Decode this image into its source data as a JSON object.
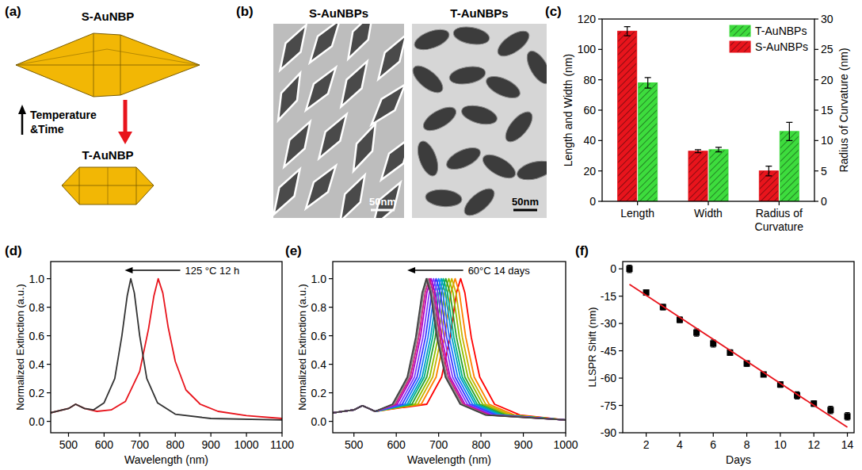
{
  "diagram": {
    "panel_label": "(a)",
    "top_label": "S-AuNBP",
    "bottom_label": "T-AuNBP",
    "arrow_label": [
      "Temperature",
      "&Time"
    ]
  },
  "images": {
    "panel_label": "(b)",
    "items": [
      {
        "title": "S-AuNBPs",
        "scale_bar": "50nm"
      },
      {
        "title": "T-AuNBPs",
        "scale_bar": "50nm"
      }
    ]
  },
  "chart_data": [
    {
      "type": "bar",
      "panel_label": "(c)",
      "ylabel": "Length and Width (nm)",
      "y2label": "Radius of Curvature (nm)",
      "categories": [
        "Length",
        "Width",
        "Radius of Curvature"
      ],
      "ylim": [
        0,
        120
      ],
      "yticks": [
        0,
        20,
        40,
        60,
        80,
        100,
        120
      ],
      "y2lim": [
        0,
        30
      ],
      "y2ticks": [
        0,
        5,
        10,
        15,
        20,
        25,
        30
      ],
      "legend": "upper right",
      "series": [
        {
          "name": "S-AuNBPs",
          "color": "#e8141c",
          "values": [
            112,
            33,
            null
          ],
          "error": [
            3,
            1,
            null
          ]
        },
        {
          "name": "T-AuNBPs",
          "color": "#3ddc3d",
          "values": [
            78,
            34,
            null
          ],
          "error": [
            3.5,
            1.5,
            null
          ]
        },
        {
          "name": "S-AuNBPs",
          "color": "#e8141c",
          "axis": "y2",
          "values": [
            null,
            null,
            5
          ],
          "error": [
            null,
            null,
            0.8
          ]
        },
        {
          "name": "T-AuNBPs",
          "color": "#3ddc3d",
          "axis": "y2",
          "values": [
            null,
            null,
            11.5
          ],
          "error": [
            null,
            null,
            1.5
          ]
        }
      ]
    },
    {
      "type": "line",
      "panel_label": "(d)",
      "xlabel": "Wavelength (nm)",
      "ylabel": "Normalized Extinction (a.u.)",
      "annotation": "125 °C 12 h",
      "xlim": [
        450,
        1100
      ],
      "xticks": [
        500,
        600,
        700,
        800,
        900,
        1000,
        1100
      ],
      "ylim": [
        -0.08,
        1.12
      ],
      "yticks": [
        {
          "value": 0,
          "label": "0.0"
        },
        0.2,
        0.4,
        0.6,
        0.8,
        {
          "value": 1,
          "label": "1.0"
        }
      ],
      "series": [
        {
          "color": "#e8141c",
          "x": [
            450,
            500,
            520,
            545,
            580,
            620,
            660,
            700,
            725,
            740,
            752,
            765,
            780,
            800,
            830,
            870,
            920,
            1000,
            1100
          ],
          "values": [
            0.06,
            0.09,
            0.12,
            0.09,
            0.07,
            0.08,
            0.14,
            0.35,
            0.65,
            0.88,
            1,
            0.9,
            0.66,
            0.42,
            0.22,
            0.12,
            0.07,
            0.04,
            0.02
          ]
        },
        {
          "color": "#333333",
          "x": [
            450,
            500,
            520,
            545,
            570,
            600,
            630,
            650,
            665,
            675,
            685,
            700,
            720,
            750,
            800,
            900,
            1100
          ],
          "values": [
            0.06,
            0.09,
            0.12,
            0.09,
            0.08,
            0.13,
            0.3,
            0.6,
            0.88,
            1,
            0.9,
            0.6,
            0.3,
            0.13,
            0.05,
            0.02,
            0.01
          ]
        }
      ]
    },
    {
      "type": "line",
      "panel_label": "(e)",
      "xlabel": "Wavelength (nm)",
      "ylabel": "Normalized Extinction (a.u.)",
      "annotation": "60°C 14 days",
      "xlim": [
        450,
        1000
      ],
      "xticks": [
        500,
        600,
        700,
        800,
        900,
        1000
      ],
      "ylim": [
        -0.08,
        1.12
      ],
      "yticks": [
        {
          "value": 0,
          "label": "0.0"
        },
        0.2,
        0.4,
        0.6,
        0.8,
        {
          "value": 1,
          "label": "1.0"
        }
      ],
      "series": [
        {
          "color": "#ff0000",
          "x": [
            450,
            500,
            520,
            550,
            672,
            707,
            727,
            742,
            752,
            762,
            777,
            797,
            832,
            892,
            1000
          ],
          "values": [
            0.06,
            0.08,
            0.11,
            0.07,
            0.12,
            0.31,
            0.59,
            0.9,
            1,
            0.9,
            0.59,
            0.31,
            0.12,
            0.044,
            0.01
          ]
        },
        {
          "color": "#ff8000",
          "x": [
            450,
            500,
            520,
            550,
            659,
            694,
            714,
            729,
            739,
            749,
            764,
            784,
            819,
            879,
            1000
          ],
          "values": [
            0.06,
            0.08,
            0.11,
            0.07,
            0.12,
            0.31,
            0.59,
            0.9,
            1,
            0.9,
            0.59,
            0.31,
            0.12,
            0.044,
            0.01
          ]
        },
        {
          "color": "#c8b400",
          "x": [
            450,
            500,
            520,
            550,
            651,
            686,
            706,
            721,
            731,
            741,
            756,
            776,
            811,
            871,
            1000
          ],
          "values": [
            0.06,
            0.08,
            0.11,
            0.07,
            0.12,
            0.31,
            0.59,
            0.9,
            1,
            0.9,
            0.59,
            0.31,
            0.12,
            0.044,
            0.01
          ]
        },
        {
          "color": "#8fbf00",
          "x": [
            450,
            500,
            520,
            550,
            644,
            679,
            699,
            714,
            724,
            734,
            749,
            769,
            804,
            864,
            1000
          ],
          "values": [
            0.06,
            0.08,
            0.11,
            0.07,
            0.12,
            0.31,
            0.59,
            0.9,
            1,
            0.9,
            0.59,
            0.31,
            0.12,
            0.044,
            0.01
          ]
        },
        {
          "color": "#2ca02c",
          "x": [
            450,
            500,
            520,
            550,
            637,
            672,
            692,
            707,
            717,
            727,
            742,
            762,
            797,
            857,
            1000
          ],
          "values": [
            0.06,
            0.08,
            0.11,
            0.07,
            0.12,
            0.31,
            0.59,
            0.9,
            1,
            0.9,
            0.59,
            0.31,
            0.12,
            0.044,
            0.01
          ]
        },
        {
          "color": "#00b386",
          "x": [
            450,
            500,
            520,
            550,
            631,
            666,
            686,
            701,
            711,
            721,
            736,
            756,
            791,
            851,
            1000
          ],
          "values": [
            0.06,
            0.08,
            0.11,
            0.07,
            0.12,
            0.31,
            0.59,
            0.9,
            1,
            0.9,
            0.59,
            0.31,
            0.12,
            0.044,
            0.01
          ]
        },
        {
          "color": "#00a0c8",
          "x": [
            450,
            500,
            520,
            550,
            626,
            661,
            681,
            696,
            706,
            716,
            731,
            751,
            786,
            846,
            1000
          ],
          "values": [
            0.06,
            0.08,
            0.11,
            0.07,
            0.12,
            0.31,
            0.59,
            0.9,
            1,
            0.9,
            0.59,
            0.31,
            0.12,
            0.044,
            0.01
          ]
        },
        {
          "color": "#1e78ff",
          "x": [
            450,
            500,
            520,
            550,
            620,
            655,
            675,
            690,
            700,
            710,
            725,
            745,
            780,
            840,
            1000
          ],
          "values": [
            0.06,
            0.08,
            0.11,
            0.07,
            0.12,
            0.31,
            0.59,
            0.9,
            1,
            0.9,
            0.59,
            0.31,
            0.12,
            0.044,
            0.01
          ]
        },
        {
          "color": "#3a3aff",
          "x": [
            450,
            500,
            520,
            550,
            614,
            649,
            669,
            684,
            694,
            704,
            719,
            739,
            774,
            834,
            1000
          ],
          "values": [
            0.06,
            0.08,
            0.11,
            0.07,
            0.12,
            0.31,
            0.59,
            0.9,
            1,
            0.9,
            0.59,
            0.31,
            0.12,
            0.044,
            0.01
          ]
        },
        {
          "color": "#8040ff",
          "x": [
            450,
            500,
            520,
            550,
            608,
            643,
            663,
            678,
            688,
            698,
            713,
            733,
            768,
            828,
            1000
          ],
          "values": [
            0.06,
            0.08,
            0.11,
            0.07,
            0.12,
            0.31,
            0.59,
            0.9,
            1,
            0.9,
            0.59,
            0.31,
            0.12,
            0.044,
            0.01
          ]
        },
        {
          "color": "#b000c0",
          "x": [
            450,
            500,
            520,
            550,
            602,
            637,
            657,
            672,
            682,
            692,
            707,
            727,
            762,
            822,
            1000
          ],
          "values": [
            0.06,
            0.08,
            0.11,
            0.07,
            0.12,
            0.31,
            0.59,
            0.9,
            1,
            0.9,
            0.59,
            0.31,
            0.12,
            0.044,
            0.01
          ]
        },
        {
          "color": "#d0207a",
          "x": [
            450,
            500,
            520,
            550,
            598,
            633,
            653,
            668,
            678,
            688,
            703,
            723,
            758,
            818,
            1000
          ],
          "values": [
            0.06,
            0.08,
            0.11,
            0.07,
            0.12,
            0.31,
            0.59,
            0.9,
            1,
            0.9,
            0.59,
            0.31,
            0.12,
            0.044,
            0.01
          ]
        },
        {
          "color": "#7f7f7f",
          "x": [
            450,
            500,
            520,
            550,
            594,
            629,
            649,
            664,
            674,
            684,
            699,
            719,
            754,
            814,
            1000
          ],
          "values": [
            0.06,
            0.08,
            0.11,
            0.07,
            0.12,
            0.31,
            0.59,
            0.9,
            1,
            0.9,
            0.59,
            0.31,
            0.12,
            0.044,
            0.01
          ]
        },
        {
          "color": "#404040",
          "x": [
            450,
            500,
            520,
            550,
            591,
            626,
            646,
            661,
            671,
            681,
            696,
            716,
            751,
            811,
            1000
          ],
          "values": [
            0.06,
            0.08,
            0.11,
            0.07,
            0.12,
            0.31,
            0.59,
            0.9,
            1,
            0.9,
            0.59,
            0.31,
            0.12,
            0.044,
            0.01
          ]
        }
      ]
    },
    {
      "type": "scatter",
      "panel_label": "(f)",
      "xlabel": "Days",
      "ylabel": "LLSPR Shift (nm)",
      "xlim": [
        0.6,
        14.4
      ],
      "xticks": [
        2,
        4,
        6,
        8,
        10,
        12,
        14
      ],
      "ylim": [
        -90,
        4
      ],
      "yticks": [
        0,
        -15,
        -30,
        -45,
        -60,
        -75,
        -90
      ],
      "series": [
        {
          "type": "scatter",
          "marker": "square",
          "color": "#000000",
          "x": [
            1,
            2,
            3,
            4,
            5,
            6,
            7,
            8,
            9,
            10,
            11,
            12,
            13,
            14
          ],
          "values": [
            0,
            -13,
            -21,
            -28,
            -35,
            -41,
            -46,
            -52,
            -58,
            -63.5,
            -69.5,
            -74,
            -77.5,
            -81
          ],
          "error": [
            2,
            1,
            1.5,
            1.5,
            2,
            2,
            1.5,
            1.5,
            1.2,
            1.5,
            2,
            1.5,
            2,
            2
          ]
        },
        {
          "type": "line",
          "color": "#e8141c",
          "x": [
            1,
            14
          ],
          "values": [
            -8.5,
            -87
          ]
        }
      ]
    }
  ]
}
